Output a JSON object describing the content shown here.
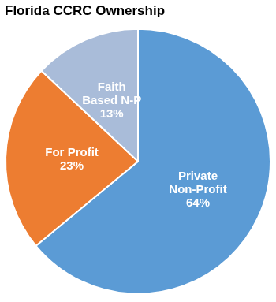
{
  "chart_data": {
    "type": "pie",
    "title": "Florida CCRC Ownership",
    "categories": [
      "Private Non-Profit",
      "For Profit",
      "Faith Based N-P"
    ],
    "values": [
      64,
      23,
      13
    ],
    "value_labels": [
      "64%",
      "23%",
      "13%"
    ],
    "colors": [
      "#5b9bd5",
      "#ed7d31",
      "#a9bcd9"
    ],
    "data_labels": true,
    "legend": false
  }
}
